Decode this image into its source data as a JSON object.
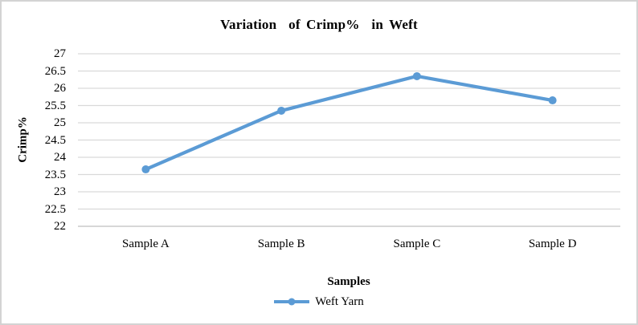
{
  "chart": {
    "title": "Variation  of Crimp%  in Weft"
  },
  "chart_data": {
    "type": "line",
    "title": "Variation of Crimp% in Weft",
    "categories": [
      "Sample A",
      "Sample B",
      "Sample C",
      "Sample D"
    ],
    "series": [
      {
        "name": "Weft Yarn",
        "color": "#5B9BD5",
        "marker": "circle",
        "values": [
          23.65,
          25.35,
          26.35,
          25.65
        ]
      }
    ],
    "xlabel": "Samples",
    "ylabel": "Crimp%",
    "ylim": [
      22,
      27
    ],
    "ytick_step": 0.5,
    "yticks": [
      27,
      26.5,
      26,
      25.5,
      25,
      24.5,
      24,
      23.5,
      23,
      22.5,
      22
    ],
    "grid": true,
    "gridline_color": "#d9d9d9",
    "axis_line_color": "#bfbfbf",
    "legend_position": "bottom",
    "frame_border_color": "#d3d3d3",
    "background_color": "#ffffff"
  }
}
